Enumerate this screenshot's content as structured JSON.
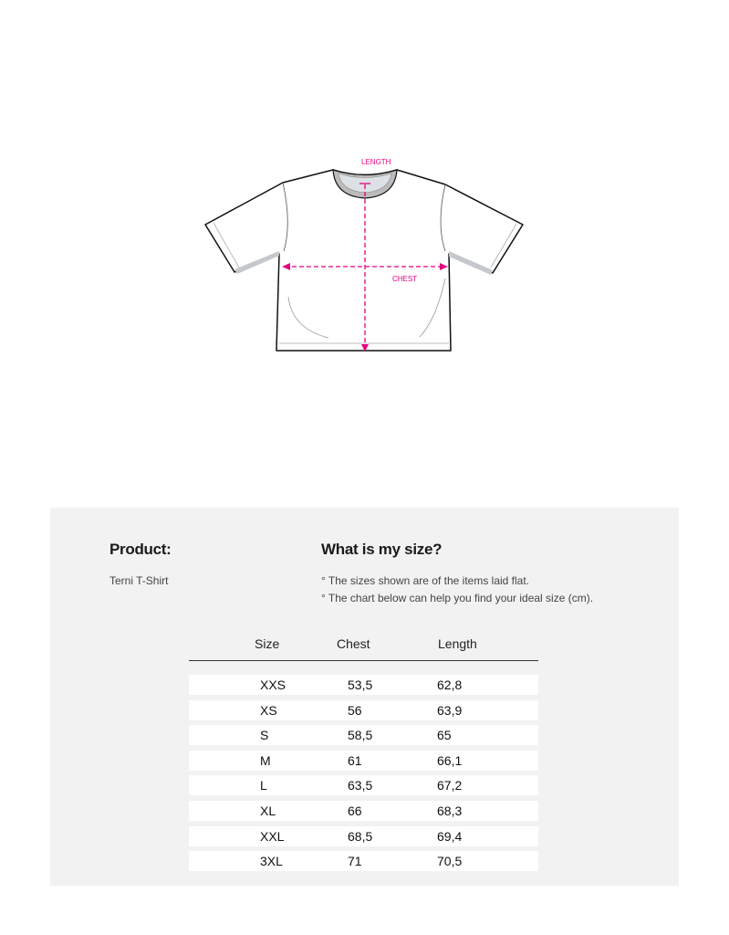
{
  "diagram": {
    "length_label": "LENGTH",
    "chest_label": "CHEST",
    "accent_color": "#e6007e"
  },
  "product": {
    "heading": "Product:",
    "name": "Terni T-Shirt"
  },
  "size_info": {
    "heading": "What is my size?",
    "notes": [
      "° The sizes shown are of the items laid flat.",
      "° The chart below can help you find your ideal size (cm)."
    ]
  },
  "table": {
    "headers": [
      "Size",
      "Chest",
      "Length"
    ],
    "rows": [
      {
        "size": "XXS",
        "chest": "53,5",
        "length": "62,8"
      },
      {
        "size": "XS",
        "chest": "56",
        "length": "63,9"
      },
      {
        "size": "S",
        "chest": "58,5",
        "length": "65"
      },
      {
        "size": "M",
        "chest": "61",
        "length": "66,1"
      },
      {
        "size": "L",
        "chest": "63,5",
        "length": "67,2"
      },
      {
        "size": "XL",
        "chest": "66",
        "length": "68,3"
      },
      {
        "size": "XXL",
        "chest": "68,5",
        "length": "69,4"
      },
      {
        "size": "3XL",
        "chest": "71",
        "length": "70,5"
      }
    ]
  }
}
